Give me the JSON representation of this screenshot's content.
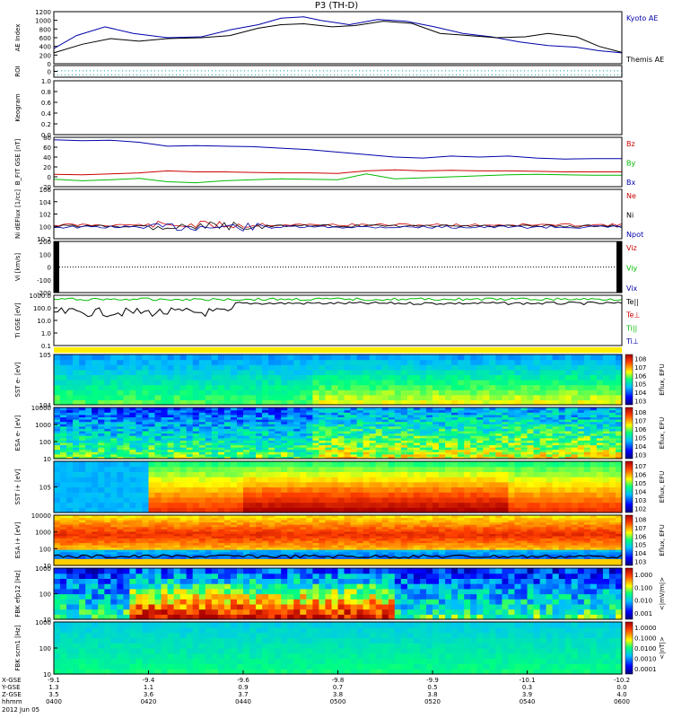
{
  "chart_data": {
    "type": "line",
    "title": "P3 (TH-D)",
    "date": "2012 Jun 05",
    "x_ticks": [
      "0400",
      "0420",
      "0440",
      "0500",
      "0520",
      "0540",
      "0600"
    ],
    "x_rows": [
      {
        "label": "X-GSE",
        "values": [
          "-9.1",
          "-9.4",
          "-9.6",
          "-9.8",
          "-9.9",
          "-10.1",
          "-10.2"
        ]
      },
      {
        "label": "Y-GSE",
        "values": [
          "1.3",
          "1.1",
          "0.9",
          "0.7",
          "0.5",
          "0.3",
          "0.0"
        ]
      },
      {
        "label": "Z-GSE",
        "values": [
          "3.5",
          "3.6",
          "3.7",
          "3.8",
          "3.8",
          "3.9",
          "4.0"
        ]
      },
      {
        "label": "hhmm",
        "values": [
          "0400",
          "0420",
          "0440",
          "0500",
          "0520",
          "0540",
          "0600"
        ]
      }
    ],
    "panels": [
      {
        "id": "ae",
        "ylabel": "AE Index",
        "yticks": [
          "0",
          "200",
          "400",
          "600",
          "800",
          "1000",
          "1200"
        ],
        "legend": [
          {
            "name": "Kyoto AE",
            "color": "#0000aa"
          },
          {
            "name": "Themis AE",
            "color": "#000000"
          }
        ],
        "series": [
          {
            "name": "Kyoto AE",
            "color": "#0000aa",
            "x": [
              0,
              0.04,
              0.09,
              0.14,
              0.2,
              0.26,
              0.31,
              0.36,
              0.4,
              0.44,
              0.47,
              0.52,
              0.57,
              0.62,
              0.67,
              0.72,
              0.77,
              0.82,
              0.87,
              0.92,
              0.96,
              1
            ],
            "y": [
              350,
              650,
              850,
              700,
              600,
              620,
              780,
              900,
              1050,
              1080,
              1000,
              900,
              1020,
              980,
              850,
              700,
              620,
              500,
              420,
              380,
              300,
              250
            ]
          },
          {
            "name": "Themis AE",
            "color": "#000000",
            "x": [
              0,
              0.05,
              0.1,
              0.15,
              0.2,
              0.26,
              0.31,
              0.36,
              0.4,
              0.44,
              0.49,
              0.53,
              0.58,
              0.63,
              0.68,
              0.73,
              0.78,
              0.83,
              0.87,
              0.92,
              0.96,
              1
            ],
            "y": [
              250,
              450,
              580,
              520,
              580,
              600,
              650,
              820,
              900,
              920,
              850,
              880,
              980,
              930,
              700,
              650,
              600,
              620,
              700,
              620,
              400,
              260
            ]
          }
        ]
      },
      {
        "id": "roi",
        "ylabel": "ROI",
        "yticks": [
          "0"
        ]
      },
      {
        "id": "keogram",
        "ylabel": "Keogram",
        "yticks": [
          "0.0",
          "0.2",
          "0.4",
          "0.6",
          "0.8",
          "1.0"
        ]
      },
      {
        "id": "bfield",
        "ylabel": "B_FIT GSE [nT]",
        "yticks": [
          "-20",
          "0",
          "20",
          "40",
          "60",
          "80"
        ],
        "legend": [
          {
            "name": "Bz",
            "color": "#cc0000"
          },
          {
            "name": "By",
            "color": "#00bb00"
          },
          {
            "name": "Bx",
            "color": "#0000aa"
          }
        ],
        "series": [
          {
            "name": "Bx",
            "color": "#0000aa",
            "x": [
              0,
              0.05,
              0.1,
              0.15,
              0.2,
              0.25,
              0.3,
              0.35,
              0.4,
              0.45,
              0.5,
              0.55,
              0.6,
              0.65,
              0.7,
              0.75,
              0.8,
              0.85,
              0.9,
              0.95,
              1
            ],
            "y": [
              75,
              73,
              74,
              70,
              62,
              63,
              62,
              61,
              58,
              55,
              50,
              45,
              40,
              38,
              42,
              40,
              42,
              38,
              36,
              37,
              37
            ]
          },
          {
            "name": "Bz",
            "color": "#cc0000",
            "x": [
              0,
              0.05,
              0.1,
              0.15,
              0.2,
              0.25,
              0.3,
              0.35,
              0.4,
              0.45,
              0.5,
              0.55,
              0.6,
              0.65,
              0.7,
              0.75,
              0.8,
              0.85,
              0.9,
              0.95,
              1
            ],
            "y": [
              5,
              4,
              6,
              8,
              12,
              10,
              10,
              9,
              8,
              8,
              7,
              12,
              14,
              12,
              13,
              12,
              12,
              11,
              10,
              10,
              10
            ]
          },
          {
            "name": "By",
            "color": "#00bb00",
            "x": [
              0,
              0.05,
              0.1,
              0.15,
              0.2,
              0.25,
              0.3,
              0.35,
              0.4,
              0.45,
              0.5,
              0.55,
              0.6,
              0.65,
              0.7,
              0.75,
              0.8,
              0.85,
              0.9,
              0.95,
              1
            ],
            "y": [
              -5,
              -8,
              -6,
              -3,
              -10,
              -12,
              -8,
              -6,
              -4,
              -5,
              -6,
              6,
              -4,
              -2,
              0,
              2,
              4,
              5,
              4,
              3,
              3
            ]
          }
        ]
      },
      {
        "id": "density",
        "ylabel": "Ni dEFlux [1/cc]",
        "yticks": [
          "10-2",
          "100",
          "102",
          "104",
          "106"
        ],
        "legend": [
          {
            "name": "Ne",
            "color": "#cc0000"
          },
          {
            "name": "Ni",
            "color": "#000000"
          },
          {
            "name": "Npot",
            "color": "#0000aa"
          }
        ]
      },
      {
        "id": "velocity",
        "ylabel": "Vi [km/s]",
        "yticks": [
          "-200",
          "-100",
          "0",
          "100",
          "200"
        ],
        "legend": [
          {
            "name": "Viz",
            "color": "#cc0000"
          },
          {
            "name": "Viy",
            "color": "#00bb00"
          },
          {
            "name": "Vix",
            "color": "#0000aa"
          }
        ]
      },
      {
        "id": "temperature",
        "ylabel": "Ti GSE [eV]",
        "yticks": [
          "0.1",
          "1.0",
          "10.0",
          "100.0",
          "1000.0"
        ],
        "legend": [
          {
            "name": "Te||",
            "color": "#000000"
          },
          {
            "name": "Te⊥",
            "color": "#cc0000"
          },
          {
            "name": "Ti||",
            "color": "#00bb00"
          },
          {
            "name": "Ti⊥",
            "color": "#0000aa"
          }
        ]
      },
      {
        "id": "sst_e",
        "ylabel": "SST e- [eV]",
        "yticks": [
          "104",
          "105"
        ],
        "cbar": [
          "103",
          "104",
          "105",
          "106",
          "107",
          "108"
        ],
        "cbar_label": "Eflux, EFU"
      },
      {
        "id": "esa_e",
        "ylabel": "ESA e- [eV]",
        "yticks": [
          "10",
          "100",
          "1000",
          "10000"
        ],
        "cbar": [
          "103",
          "104",
          "105",
          "106",
          "107",
          "108"
        ],
        "cbar_label": "Eflux, EFU"
      },
      {
        "id": "sst_i",
        "ylabel": "SST i+ [eV]",
        "yticks": [
          "105"
        ],
        "cbar": [
          "102",
          "103",
          "104",
          "105",
          "106",
          "107"
        ],
        "cbar_label": "Eflux, EFU"
      },
      {
        "id": "esa_i",
        "ylabel": "ESA i+ [eV]",
        "yticks": [
          "10",
          "100",
          "1000",
          "10000"
        ],
        "cbar": [
          "103",
          "104",
          "105",
          "106",
          "107",
          "108"
        ],
        "cbar_label": "Eflux, EFU"
      },
      {
        "id": "fbk_e",
        "ylabel": "FBK efp12 [Hz]",
        "yticks": [
          "10",
          "100",
          "1000"
        ],
        "cbar": [
          "0.001",
          "0.010",
          "0.100",
          "1.000"
        ],
        "cbar_label": "<|mV/m|>"
      },
      {
        "id": "fbk_b",
        "ylabel": "FBK scm1 [Hz]",
        "yticks": [
          "10",
          "100",
          "1000"
        ],
        "cbar": [
          "0.0001",
          "0.0010",
          "0.0100",
          "0.1000",
          "1.0000"
        ],
        "cbar_label": "<|nT|>"
      }
    ]
  }
}
